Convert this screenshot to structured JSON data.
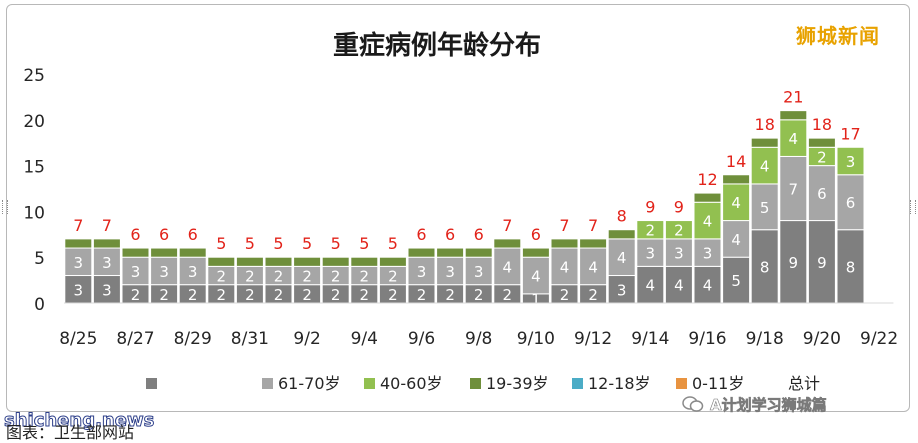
{
  "brand": {
    "name": "狮城新闻"
  },
  "watermark": {
    "text": "shicheng.news"
  },
  "caption": {
    "text": "图表：卫生部网站"
  },
  "wechat": {
    "account": "A计划学习狮城篇"
  },
  "colors": {
    "gray_dark": "#7f7f7f",
    "gray_light": "#a6a6a6",
    "green_light": "#92c050",
    "green_dark": "#6f8f3b",
    "teal": "#4bacc6",
    "orange": "#e89340",
    "total_label": "#e2231a",
    "axis_text": "#262626"
  },
  "chart_data": {
    "type": "bar",
    "stacked": true,
    "title": "重症病例年龄分布",
    "dates": [
      "8/25",
      "8/26",
      "8/27",
      "8/28",
      "8/29",
      "8/30",
      "8/31",
      "9/1",
      "9/2",
      "9/3",
      "9/4",
      "9/5",
      "9/6",
      "9/7",
      "9/8",
      "9/9",
      "9/10",
      "9/11",
      "9/12",
      "9/13",
      "9/14",
      "9/15",
      "9/16",
      "9/17",
      "9/18",
      "9/19",
      "9/20",
      "9/21"
    ],
    "x_tick_labels": [
      "8/25",
      "8/27",
      "8/29",
      "8/31",
      "9/2",
      "9/4",
      "9/6",
      "9/8",
      "9/10",
      "9/12",
      "9/14",
      "9/16",
      "9/18",
      "9/20",
      "9/22"
    ],
    "ylim": [
      0,
      25
    ],
    "y_ticks": [
      0,
      5,
      10,
      15,
      20,
      25
    ],
    "grid": false,
    "legend_position": "bottom",
    "series": [
      {
        "name": "",
        "color": "#7f7f7f",
        "values": [
          3,
          3,
          2,
          2,
          2,
          2,
          2,
          2,
          2,
          2,
          2,
          2,
          2,
          2,
          2,
          2,
          1,
          2,
          2,
          3,
          4,
          4,
          4,
          5,
          8,
          9,
          9,
          8
        ]
      },
      {
        "name": "61-70岁",
        "color": "#a6a6a6",
        "values": [
          3,
          3,
          3,
          3,
          3,
          2,
          2,
          2,
          2,
          2,
          2,
          2,
          3,
          3,
          3,
          4,
          4,
          4,
          4,
          4,
          3,
          3,
          3,
          4,
          5,
          7,
          6,
          6
        ]
      },
      {
        "name": "40-60岁",
        "color": "#92c050",
        "values": [
          0,
          0,
          0,
          0,
          0,
          0,
          0,
          0,
          0,
          0,
          0,
          0,
          0,
          0,
          0,
          0,
          0,
          0,
          0,
          0,
          2,
          2,
          4,
          4,
          4,
          4,
          2,
          3
        ]
      },
      {
        "name": "19-39岁",
        "color": "#6f8f3b",
        "values": [
          1,
          1,
          1,
          1,
          1,
          1,
          1,
          1,
          1,
          1,
          1,
          1,
          1,
          1,
          1,
          1,
          1,
          1,
          1,
          1,
          0,
          0,
          1,
          1,
          1,
          1,
          1,
          0
        ]
      },
      {
        "name": "12-18岁",
        "color": "#4bacc6",
        "values": [
          0,
          0,
          0,
          0,
          0,
          0,
          0,
          0,
          0,
          0,
          0,
          0,
          0,
          0,
          0,
          0,
          0,
          0,
          0,
          0,
          0,
          0,
          0,
          0,
          0,
          0,
          0,
          0
        ]
      },
      {
        "name": "0-11岁",
        "color": "#e89340",
        "values": [
          0,
          0,
          0,
          0,
          0,
          0,
          0,
          0,
          0,
          0,
          0,
          0,
          0,
          0,
          0,
          0,
          0,
          0,
          0,
          0,
          0,
          0,
          0,
          0,
          0,
          0,
          0,
          0
        ]
      }
    ],
    "totals_name": "总计",
    "totals": [
      7,
      7,
      6,
      6,
      6,
      5,
      5,
      5,
      5,
      5,
      5,
      5,
      6,
      6,
      6,
      7,
      6,
      7,
      7,
      8,
      9,
      9,
      12,
      14,
      18,
      21,
      18,
      17
    ]
  }
}
